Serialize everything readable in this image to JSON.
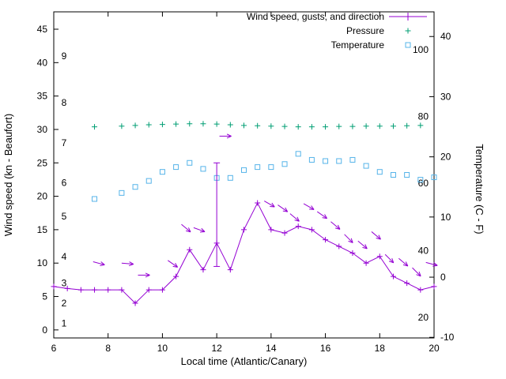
{
  "chart_data": {
    "type": "line",
    "title": "",
    "xlabel": "Local time (Atlantic/Canary)",
    "ylabel_left": "Wind speed (kn - Beaufort)",
    "ylabel_right": "Temperature (C - F)",
    "grid": false,
    "legend_position": "top-right-inside",
    "legend": [
      {
        "label": "Wind speed, gusts, and direction",
        "color": "#9400d3",
        "marker": "plus-line-errorbar"
      },
      {
        "label": "Pressure",
        "color": "#009e73",
        "marker": "plus"
      },
      {
        "label": "Temperature",
        "color": "#56b4e9",
        "marker": "square"
      }
    ],
    "colors": {
      "wind": "#9400d3",
      "pressure": "#009e73",
      "temperature": "#56b4e9",
      "axis": "#000000"
    },
    "x_axis": {
      "min": 6,
      "max": 20,
      "ticks": [
        6,
        8,
        10,
        12,
        14,
        16,
        18,
        20
      ]
    },
    "y_left": {
      "min": -1.2,
      "max": 47.6,
      "ticks": [
        0,
        5,
        10,
        15,
        20,
        25,
        30,
        35,
        40,
        45
      ]
    },
    "y_right": {
      "min": -10.1,
      "max": 44.1,
      "ticks": [
        -10,
        0,
        10,
        20,
        30,
        40
      ]
    },
    "beaufort_labels": [
      {
        "label": "1",
        "kn": 1
      },
      {
        "label": "2",
        "kn": 4
      },
      {
        "label": "3",
        "kn": 7
      },
      {
        "label": "4",
        "kn": 11
      },
      {
        "label": "5",
        "kn": 17
      },
      {
        "label": "6",
        "kn": 22
      },
      {
        "label": "7",
        "kn": 28
      },
      {
        "label": "8",
        "kn": 34
      },
      {
        "label": "9",
        "kn": 41
      }
    ],
    "fahrenheit_labels": [
      {
        "label": "20",
        "c": -6.7
      },
      {
        "label": "40",
        "c": 4.4
      },
      {
        "label": "60",
        "c": 15.6
      },
      {
        "label": "80",
        "c": 26.7
      },
      {
        "label": "100",
        "c": 37.8
      }
    ],
    "series": {
      "wind_speed": {
        "axis": "left",
        "x": [
          6,
          6.5,
          7,
          7.5,
          8,
          8.5,
          9,
          9.5,
          10,
          10.5,
          11,
          11.5,
          12,
          12.5,
          13,
          13.5,
          14,
          14.5,
          15,
          15.5,
          16,
          16.5,
          17,
          17.5,
          18,
          18.5,
          19,
          19.5,
          20
        ],
        "y": [
          6.5,
          6.2,
          6,
          6,
          6,
          6,
          4,
          6,
          6,
          8,
          12,
          9,
          13,
          9,
          15,
          19,
          15,
          14.5,
          15.5,
          15,
          13.5,
          12.5,
          11.5,
          10,
          11,
          8,
          7,
          6,
          6.5
        ]
      },
      "wind_gust_errorbar": {
        "axis": "left",
        "x": 12,
        "low": 9.5,
        "high": 25
      },
      "wind_direction_arrows": [
        {
          "x": 7.45,
          "y": 10.2,
          "angle": 15
        },
        {
          "x": 8.5,
          "y": 10.0,
          "angle": 5
        },
        {
          "x": 9.1,
          "y": 8.2,
          "angle": 0
        },
        {
          "x": 10.2,
          "y": 10.4,
          "angle": 35
        },
        {
          "x": 10.7,
          "y": 15.8,
          "angle": 40
        },
        {
          "x": 11.15,
          "y": 15.3,
          "angle": 20
        },
        {
          "x": 12.1,
          "y": 29.0,
          "angle": 0
        },
        {
          "x": 13.75,
          "y": 19.3,
          "angle": 30
        },
        {
          "x": 14.25,
          "y": 18.7,
          "angle": 35
        },
        {
          "x": 14.7,
          "y": 17.4,
          "angle": 40
        },
        {
          "x": 15.2,
          "y": 18.9,
          "angle": 30
        },
        {
          "x": 15.7,
          "y": 17.7,
          "angle": 35
        },
        {
          "x": 16.2,
          "y": 16.2,
          "angle": 40
        },
        {
          "x": 16.7,
          "y": 14.3,
          "angle": 45
        },
        {
          "x": 17.2,
          "y": 13.3,
          "angle": 40
        },
        {
          "x": 17.7,
          "y": 14.7,
          "angle": 40
        },
        {
          "x": 18.2,
          "y": 11.3,
          "angle": 45
        },
        {
          "x": 18.7,
          "y": 10.7,
          "angle": 40
        },
        {
          "x": 19.2,
          "y": 9.3,
          "angle": 45
        },
        {
          "x": 19.7,
          "y": 10.1,
          "angle": 15
        }
      ],
      "pressure": {
        "axis": "left",
        "x": [
          7.5,
          8.5,
          9,
          9.5,
          10,
          10.5,
          11,
          11.5,
          12,
          12.5,
          13,
          13.5,
          14,
          14.5,
          15,
          15.5,
          16,
          16.5,
          17,
          17.5,
          18,
          18.5,
          19,
          19.5
        ],
        "y": [
          30.4,
          30.5,
          30.6,
          30.7,
          30.75,
          30.8,
          30.85,
          30.85,
          30.8,
          30.7,
          30.6,
          30.55,
          30.5,
          30.45,
          30.4,
          30.4,
          30.4,
          30.45,
          30.45,
          30.5,
          30.5,
          30.5,
          30.55,
          30.6
        ]
      },
      "temperature": {
        "axis": "right",
        "x": [
          7.5,
          8.5,
          9,
          9.5,
          10,
          10.5,
          11,
          11.5,
          12,
          12.5,
          13,
          13.5,
          14,
          14.5,
          15,
          15.5,
          16,
          16.5,
          17,
          17.5,
          18,
          18.5,
          19,
          19.5,
          20
        ],
        "y": [
          13,
          14,
          15,
          16,
          17.5,
          18.3,
          19,
          18,
          16.5,
          16.5,
          17.8,
          18.3,
          18.3,
          18.8,
          20.5,
          19.5,
          19.3,
          19.3,
          19.5,
          18.5,
          17.5,
          17,
          17,
          16.2,
          16.6
        ]
      }
    }
  }
}
